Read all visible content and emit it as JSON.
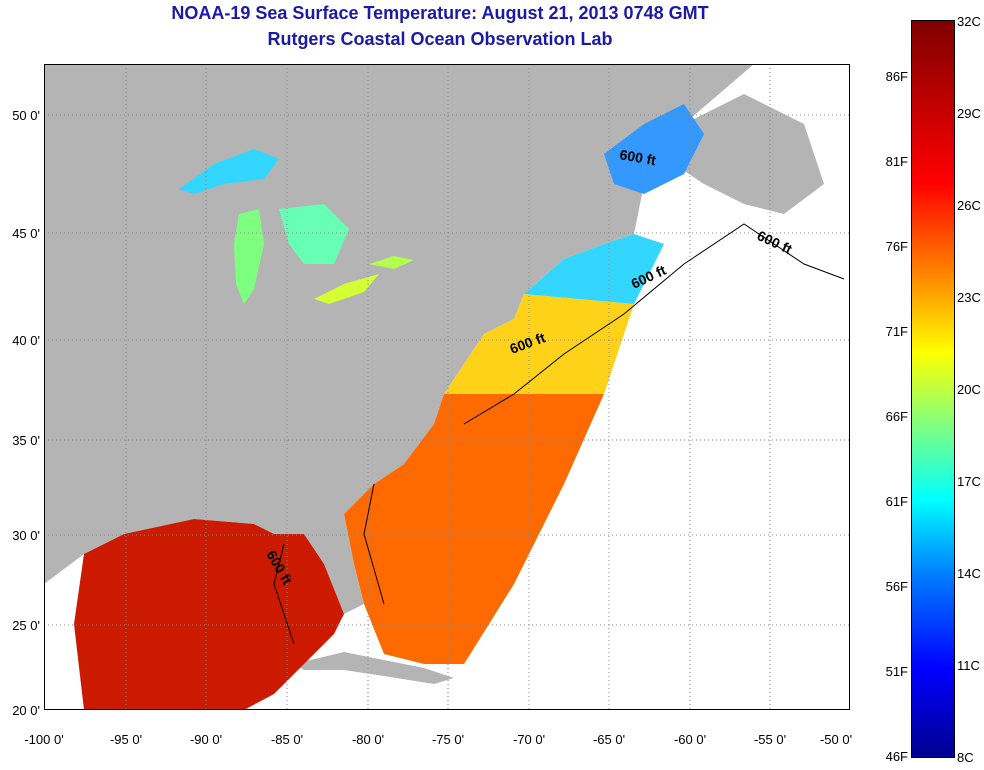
{
  "title_line1": "NOAA-19 Sea Surface Temperature:  August 21, 2013 0748 GMT",
  "title_line2": "Rutgers Coastal Ocean Observation Lab",
  "lat_ticks": [
    "50 0'",
    "45 0'",
    "40 0'",
    "35 0'",
    "30 0'",
    "25 0'",
    "20 0'"
  ],
  "lon_ticks": [
    "-100 0'",
    "-95 0'",
    "-90 0'",
    "-85 0'",
    "-80 0'",
    "-75 0'",
    "-70 0'",
    "-65 0'",
    "-60 0'",
    "-55 0'",
    "-50 0'"
  ],
  "contour_labels": [
    "600 ft",
    "600 ft",
    "600 ft",
    "600 ft",
    "600 ft"
  ],
  "colorbar": {
    "fahrenheit": [
      "86F",
      "81F",
      "76F",
      "71F",
      "66F",
      "61F",
      "56F",
      "51F",
      "46F"
    ],
    "celsius": [
      "32C",
      "29C",
      "26C",
      "23C",
      "20C",
      "17C",
      "14C",
      "11C",
      "8C"
    ]
  },
  "colors": {
    "land": "#b4b4b4",
    "title": "#1a1aa6",
    "hot": "#cc1a00",
    "warm": "#ff7a00",
    "mild": "#ffff33",
    "cool": "#33d6ff",
    "cold": "#1a3cff"
  }
}
